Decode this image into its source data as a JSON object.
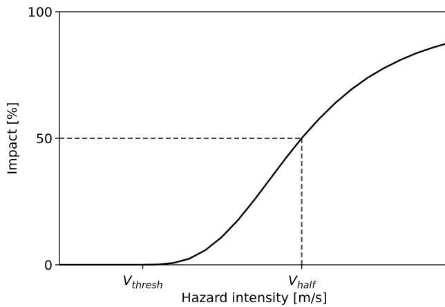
{
  "chart_data": {
    "type": "line",
    "xlabel": "Hazard intensity [m/s]",
    "ylabel": "Impact [%]",
    "x": [
      0,
      5,
      10,
      15,
      20,
      25,
      30,
      35,
      40,
      45,
      50,
      55,
      60,
      65,
      70,
      75,
      80,
      85,
      90,
      95,
      100,
      105,
      110,
      115,
      120
    ],
    "series": [
      {
        "color": "#000000",
        "values": [
          0,
          0,
          0,
          0,
          0,
          0,
          0.1,
          0.7,
          2.4,
          5.8,
          10.9,
          17.6,
          25.5,
          34.0,
          42.5,
          50.5,
          57.6,
          63.9,
          69.3,
          73.9,
          77.7,
          80.9,
          83.6,
          85.8,
          87.7
        ]
      }
    ],
    "xlim": [
      0,
      120
    ],
    "ylim": [
      0,
      100
    ],
    "xticks": [
      {
        "value": 25.7,
        "label": "V",
        "subscript": "thresh"
      },
      {
        "value": 74.7,
        "label": "V",
        "subscript": "half"
      }
    ],
    "yticks": [
      0,
      50,
      100
    ],
    "guide_color": "#444444"
  }
}
